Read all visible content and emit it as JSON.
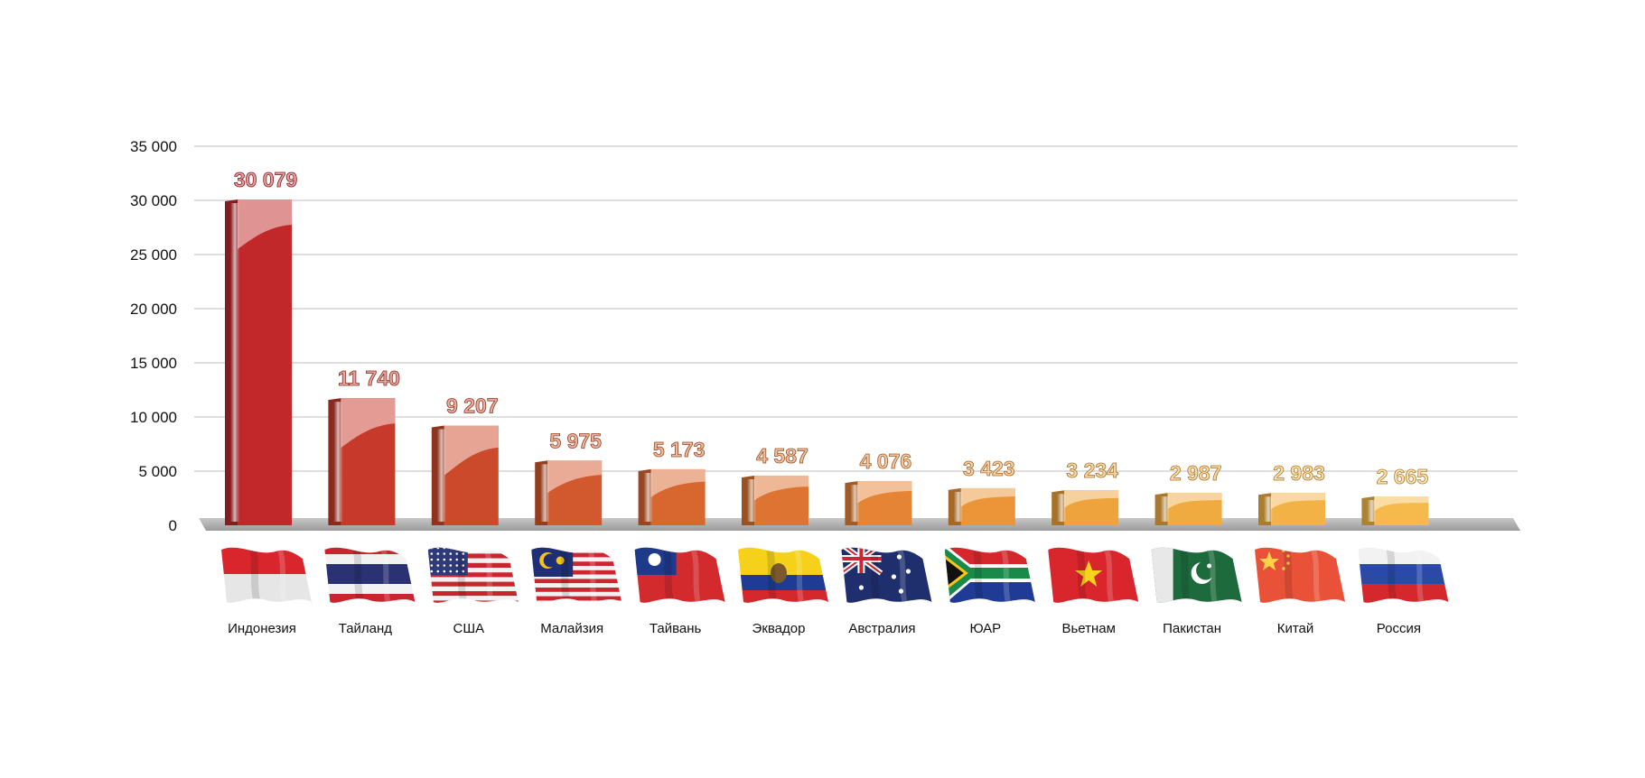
{
  "chart_data": {
    "type": "bar",
    "title": "",
    "xlabel": "",
    "ylabel": "",
    "ylim": [
      0,
      35000
    ],
    "yticks": [
      0,
      5000,
      10000,
      15000,
      20000,
      25000,
      30000,
      35000
    ],
    "ytick_labels": [
      "0",
      "5 000",
      "10 000",
      "15 000",
      "20 000",
      "25 000",
      "30 000",
      "35 000"
    ],
    "grid": true,
    "legend": "none",
    "categories": [
      "Индонезия",
      "Тайланд",
      "США",
      "Малайзия",
      "Тайвань",
      "Эквадор",
      "Австралия",
      "ЮАР",
      "Вьетнам",
      "Пакистан",
      "Китай",
      "Россия"
    ],
    "values": [
      30079,
      11740,
      9207,
      5975,
      5173,
      4587,
      4076,
      3423,
      3234,
      2987,
      2983,
      2665
    ],
    "value_labels": [
      "30 079",
      "11 740",
      "9 207",
      "5 975",
      "5 173",
      "4 587",
      "4 076",
      "3 423",
      "3 234",
      "2 987",
      "2 983",
      "2 665"
    ],
    "bar_colors": [
      "#c0282a",
      "#c73a2b",
      "#cb4a2c",
      "#d2592d",
      "#d8662f",
      "#de7431",
      "#e58434",
      "#eb9538",
      "#eea33c",
      "#f0ab40",
      "#f2b245",
      "#f5b94c"
    ],
    "flag_icons": [
      "flag-indonesia",
      "flag-thailand",
      "flag-usa",
      "flag-malaysia",
      "flag-taiwan",
      "flag-ecuador",
      "flag-australia",
      "flag-south-africa",
      "flag-vietnam",
      "flag-pakistan",
      "flag-china",
      "flag-russia"
    ]
  }
}
